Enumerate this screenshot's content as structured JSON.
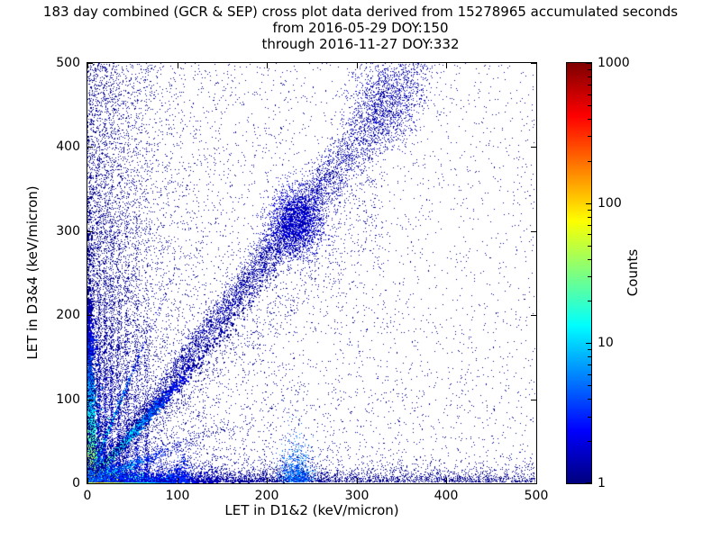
{
  "chart_data": {
    "type": "heatmap",
    "title": "183 day combined (GCR & SEP) cross plot data derived from 15278965 accumulated seconds",
    "subtitle1": "from 2016-05-29 DOY:150",
    "subtitle2": "through 2016-11-27 DOY:332",
    "xlabel": "LET in D1&2 (keV/micron)",
    "ylabel": "LET in D3&4 (keV/micron)",
    "xlim": [
      0,
      500
    ],
    "ylim": [
      0,
      500
    ],
    "xticks": [
      0,
      100,
      200,
      300,
      400,
      500
    ],
    "yticks": [
      0,
      100,
      200,
      300,
      400,
      500
    ],
    "grid": false,
    "colorbar": {
      "label": "Counts",
      "scale": "log",
      "min": 1,
      "max": 1000,
      "ticks": [
        1,
        10,
        100,
        1000
      ],
      "colormap": "jet"
    },
    "features": [
      {
        "kind": "core",
        "n": 14000,
        "s": 6.5,
        "v0": 1100,
        "d": 8,
        "size": 2
      },
      {
        "kind": "armx",
        "n": 5000,
        "sx": 26,
        "sy": 2.6,
        "v0": 160,
        "d": 26,
        "size": 2
      },
      {
        "kind": "army",
        "n": 4200,
        "sx": 2.4,
        "sy": 55,
        "v0": 70,
        "d": 45,
        "size": 2
      },
      {
        "kind": "ray",
        "n": 2600,
        "slope": 1.18,
        "len": 34,
        "v0": 60,
        "d": 26,
        "size": 2
      },
      {
        "kind": "ray",
        "n": 1300,
        "slope": 2.6,
        "len": 20,
        "v0": 28,
        "d": 22,
        "size": 1
      },
      {
        "kind": "ray",
        "n": 1500,
        "slope": 0.42,
        "len": 38,
        "v0": 30,
        "d": 30,
        "size": 1
      },
      {
        "kind": "streak",
        "x": 13,
        "n": 700,
        "sx": 1.2,
        "ys": 160,
        "v0": 4,
        "size": 1
      },
      {
        "kind": "streak",
        "x": 20,
        "n": 650,
        "sx": 1.2,
        "ys": 170,
        "v0": 3,
        "size": 1
      },
      {
        "kind": "streak",
        "x": 27,
        "n": 600,
        "sx": 1.3,
        "ys": 160,
        "v0": 3,
        "size": 1
      },
      {
        "kind": "streak",
        "x": 35,
        "n": 550,
        "sx": 1.4,
        "ys": 150,
        "v0": 2,
        "size": 1
      },
      {
        "kind": "streak",
        "x": 44,
        "n": 500,
        "sx": 1.5,
        "ys": 140,
        "v0": 2,
        "size": 1
      },
      {
        "kind": "streak",
        "x": 55,
        "n": 420,
        "sx": 1.6,
        "ys": 130,
        "v0": 2,
        "size": 1
      },
      {
        "kind": "streak",
        "x": 66,
        "n": 350,
        "sx": 1.7,
        "ys": 120,
        "v0": 1,
        "size": 1
      },
      {
        "kind": "field",
        "n": 5200,
        "xs": 34,
        "yexp": 170,
        "size": 1
      },
      {
        "kind": "field",
        "n": 2800,
        "xs": 110,
        "yexp": 150,
        "size": 1
      },
      {
        "kind": "diag",
        "n": 5200,
        "cx": 215,
        "xs": 95,
        "slope": 1.34,
        "sp0": 5,
        "spg": 0.055,
        "v": 1.4,
        "size": 1
      },
      {
        "kind": "blob",
        "cx": 233,
        "cy": 310,
        "sx": 15,
        "sy": 20,
        "n": 2300,
        "v": 1.8,
        "size": 1
      },
      {
        "kind": "blob",
        "cx": 333,
        "cy": 452,
        "sx": 20,
        "sy": 26,
        "n": 1000,
        "v": 1.4,
        "size": 1
      },
      {
        "kind": "wedge",
        "n": 1700,
        "x1": 330,
        "m0": 0.85,
        "m1": 1.5,
        "size": 1
      },
      {
        "kind": "hband",
        "n": 5000,
        "mix": 0.35,
        "xs": 160,
        "ys": 7,
        "v0": 4,
        "size": 1
      },
      {
        "kind": "vcluster",
        "cx": 233,
        "n": 800,
        "sx": 9,
        "ys": 16,
        "v": 5,
        "size": 1
      },
      {
        "kind": "vcluster",
        "cx": 105,
        "n": 380,
        "sx": 5,
        "ys": 10,
        "v": 3,
        "size": 1
      },
      {
        "kind": "bg",
        "n": 1700,
        "p": 1,
        "size": 1
      },
      {
        "kind": "bg",
        "n": 2600,
        "p": 1.7,
        "size": 1
      }
    ]
  }
}
